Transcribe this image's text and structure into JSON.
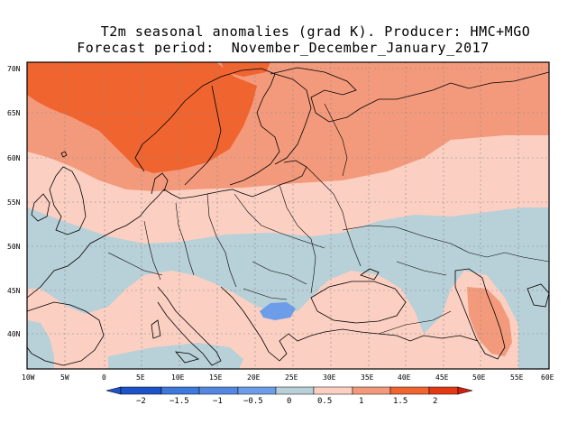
{
  "title_line1": "T2m seasonal anomalies (grad K). Producer: HMC+MGO",
  "title_line2": "Forecast period:  November_December_January_2017",
  "colors": {
    "pos3": "#f0642f",
    "pos2": "#f49a7c",
    "pos1": "#fbd0c2",
    "neg1": "#b8d0d8",
    "neg2": "#6d9de9",
    "neg3": "#3e78dc",
    "neg4": "#1d53c8",
    "pos4": "#e33a14",
    "pos5": "#d41e0c"
  },
  "lat_ticks": [
    "70N",
    "65N",
    "60N",
    "55N",
    "50N",
    "45N",
    "40N"
  ],
  "lon_ticks": [
    "10W",
    "5W",
    "0",
    "5E",
    "10E",
    "15E",
    "20E",
    "25E",
    "30E",
    "35E",
    "40E",
    "45E",
    "50E",
    "55E",
    "60E"
  ],
  "colorbar_labels": [
    "−2",
    "−1.5",
    "−1",
    "−0.5",
    "0",
    "0.5",
    "1",
    "1.5",
    "2"
  ]
}
